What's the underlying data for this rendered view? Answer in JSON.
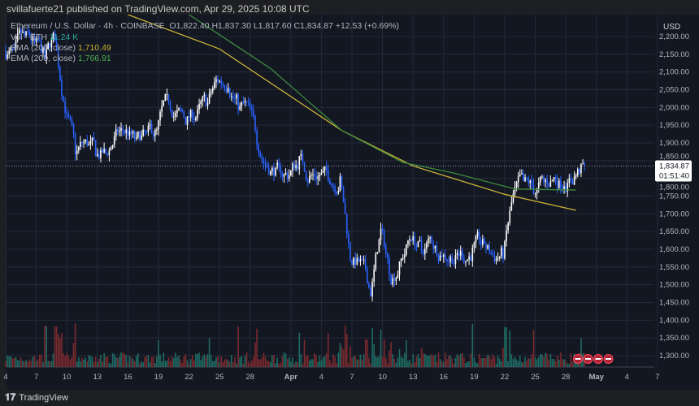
{
  "header": {
    "published": "svillafuerte21 published on TradingView.com, Apr 29, 2025 10:08 UTC"
  },
  "legend": {
    "symbol": "Ethereum / U.S. Dollar · 4h · COINBASE",
    "ohlc": "O1,822.40  H1,837.30  L1,817.60  C1,834.87  +12.53 (+0.69%)",
    "vol_label": "Vol · ETH",
    "vol_value": "11.24 K",
    "sma_label": "SMA (200, close)",
    "sma_value": "1,710.49",
    "ema_label": "EMA (200, close)",
    "ema_value": "1,766.91"
  },
  "axis": {
    "currency": "USD",
    "price_label": "1,834.87",
    "countdown": "01:51:40"
  },
  "colors": {
    "bg": "#131722",
    "up": "#ffffff",
    "down": "#2962ff",
    "sma": "#c9b236",
    "ema": "#3d8b3d",
    "vol_up": "#1f6b63",
    "vol_down": "#7a2a2e"
  },
  "footer": {
    "brand": "TradingView"
  },
  "chart_data": {
    "type": "candlestick",
    "interval": "4h",
    "ylim": [
      1260,
      2260
    ],
    "yticks": [
      "1,300.00",
      "1,350.00",
      "1,400.00",
      "1,450.00",
      "1,500.00",
      "1,550.00",
      "1,600.00",
      "1,650.00",
      "1,700.00",
      "1,750.00",
      "1,800.00",
      "1,850.00",
      "1,900.00",
      "1,950.00",
      "2,000.00",
      "2,050.00",
      "2,100.00",
      "2,150.00",
      "2,200.00"
    ],
    "xticks": [
      {
        "date": "2025-03-04",
        "label": "4"
      },
      {
        "date": "2025-03-07",
        "label": "7"
      },
      {
        "date": "2025-03-10",
        "label": "10"
      },
      {
        "date": "2025-03-13",
        "label": "13"
      },
      {
        "date": "2025-03-16",
        "label": "16"
      },
      {
        "date": "2025-03-19",
        "label": "19"
      },
      {
        "date": "2025-03-22",
        "label": "22"
      },
      {
        "date": "2025-03-25",
        "label": "25"
      },
      {
        "date": "2025-03-28",
        "label": "28"
      },
      {
        "date": "2025-04-01",
        "label": "Apr"
      },
      {
        "date": "2025-04-04",
        "label": "4"
      },
      {
        "date": "2025-04-07",
        "label": "7"
      },
      {
        "date": "2025-04-10",
        "label": "10"
      },
      {
        "date": "2025-04-13",
        "label": "13"
      },
      {
        "date": "2025-04-16",
        "label": "16"
      },
      {
        "date": "2025-04-19",
        "label": "19"
      },
      {
        "date": "2025-04-22",
        "label": "22"
      },
      {
        "date": "2025-04-25",
        "label": "25"
      },
      {
        "date": "2025-04-28",
        "label": "28"
      },
      {
        "date": "2025-05-01",
        "label": "May"
      },
      {
        "date": "2025-05-04",
        "label": "4"
      },
      {
        "date": "2025-05-07",
        "label": "7"
      }
    ],
    "daily_close": [
      [
        "2025-03-04",
        2150
      ],
      [
        "2025-03-05",
        2200
      ],
      [
        "2025-03-06",
        2180
      ],
      [
        "2025-03-07",
        2140
      ],
      [
        "2025-03-08",
        2200
      ],
      [
        "2025-03-09",
        2000
      ],
      [
        "2025-03-10",
        1880
      ],
      [
        "2025-03-11",
        1900
      ],
      [
        "2025-03-12",
        1880
      ],
      [
        "2025-03-13",
        1870
      ],
      [
        "2025-03-14",
        1920
      ],
      [
        "2025-03-15",
        1930
      ],
      [
        "2025-03-16",
        1900
      ],
      [
        "2025-03-17",
        1920
      ],
      [
        "2025-03-18",
        1930
      ],
      [
        "2025-03-19",
        2020
      ],
      [
        "2025-03-20",
        1980
      ],
      [
        "2025-03-21",
        1960
      ],
      [
        "2025-03-22",
        1980
      ],
      [
        "2025-03-23",
        2010
      ],
      [
        "2025-03-24",
        2080
      ],
      [
        "2025-03-25",
        2070
      ],
      [
        "2025-03-26",
        2010
      ],
      [
        "2025-03-27",
        2000
      ],
      [
        "2025-03-28",
        1890
      ],
      [
        "2025-03-29",
        1830
      ],
      [
        "2025-03-30",
        1820
      ],
      [
        "2025-03-31",
        1810
      ],
      [
        "2025-04-01",
        1850
      ],
      [
        "2025-04-02",
        1800
      ],
      [
        "2025-04-03",
        1810
      ],
      [
        "2025-04-04",
        1800
      ],
      [
        "2025-04-05",
        1790
      ],
      [
        "2025-04-06",
        1580
      ],
      [
        "2025-04-07",
        1560
      ],
      [
        "2025-04-08",
        1480
      ],
      [
        "2025-04-09",
        1650
      ],
      [
        "2025-04-10",
        1520
      ],
      [
        "2025-04-11",
        1570
      ],
      [
        "2025-04-12",
        1640
      ],
      [
        "2025-04-13",
        1600
      ],
      [
        "2025-04-14",
        1630
      ],
      [
        "2025-04-15",
        1590
      ],
      [
        "2025-04-16",
        1580
      ],
      [
        "2025-04-17",
        1590
      ],
      [
        "2025-04-18",
        1590
      ],
      [
        "2025-04-19",
        1610
      ],
      [
        "2025-04-20",
        1580
      ],
      [
        "2025-04-21",
        1590
      ],
      [
        "2025-04-22",
        1750
      ],
      [
        "2025-04-23",
        1790
      ],
      [
        "2025-04-24",
        1770
      ],
      [
        "2025-04-25",
        1790
      ],
      [
        "2025-04-26",
        1800
      ],
      [
        "2025-04-27",
        1790
      ],
      [
        "2025-04-28",
        1800
      ],
      [
        "2025-04-29",
        1835
      ]
    ],
    "sma_200": [
      [
        "2025-03-16",
        2262
      ],
      [
        "2025-03-25",
        2165
      ],
      [
        "2025-04-06",
        1935
      ],
      [
        "2025-04-13",
        1835
      ],
      [
        "2025-04-22",
        1755
      ],
      [
        "2025-04-29",
        1710
      ]
    ],
    "ema_200": [
      [
        "2025-03-22",
        2262
      ],
      [
        "2025-03-30",
        2110
      ],
      [
        "2025-04-06",
        1935
      ],
      [
        "2025-04-12",
        1845
      ],
      [
        "2025-04-17",
        1815
      ],
      [
        "2025-04-23",
        1770
      ],
      [
        "2025-04-29",
        1767
      ]
    ],
    "last_price": 1834.87
  }
}
